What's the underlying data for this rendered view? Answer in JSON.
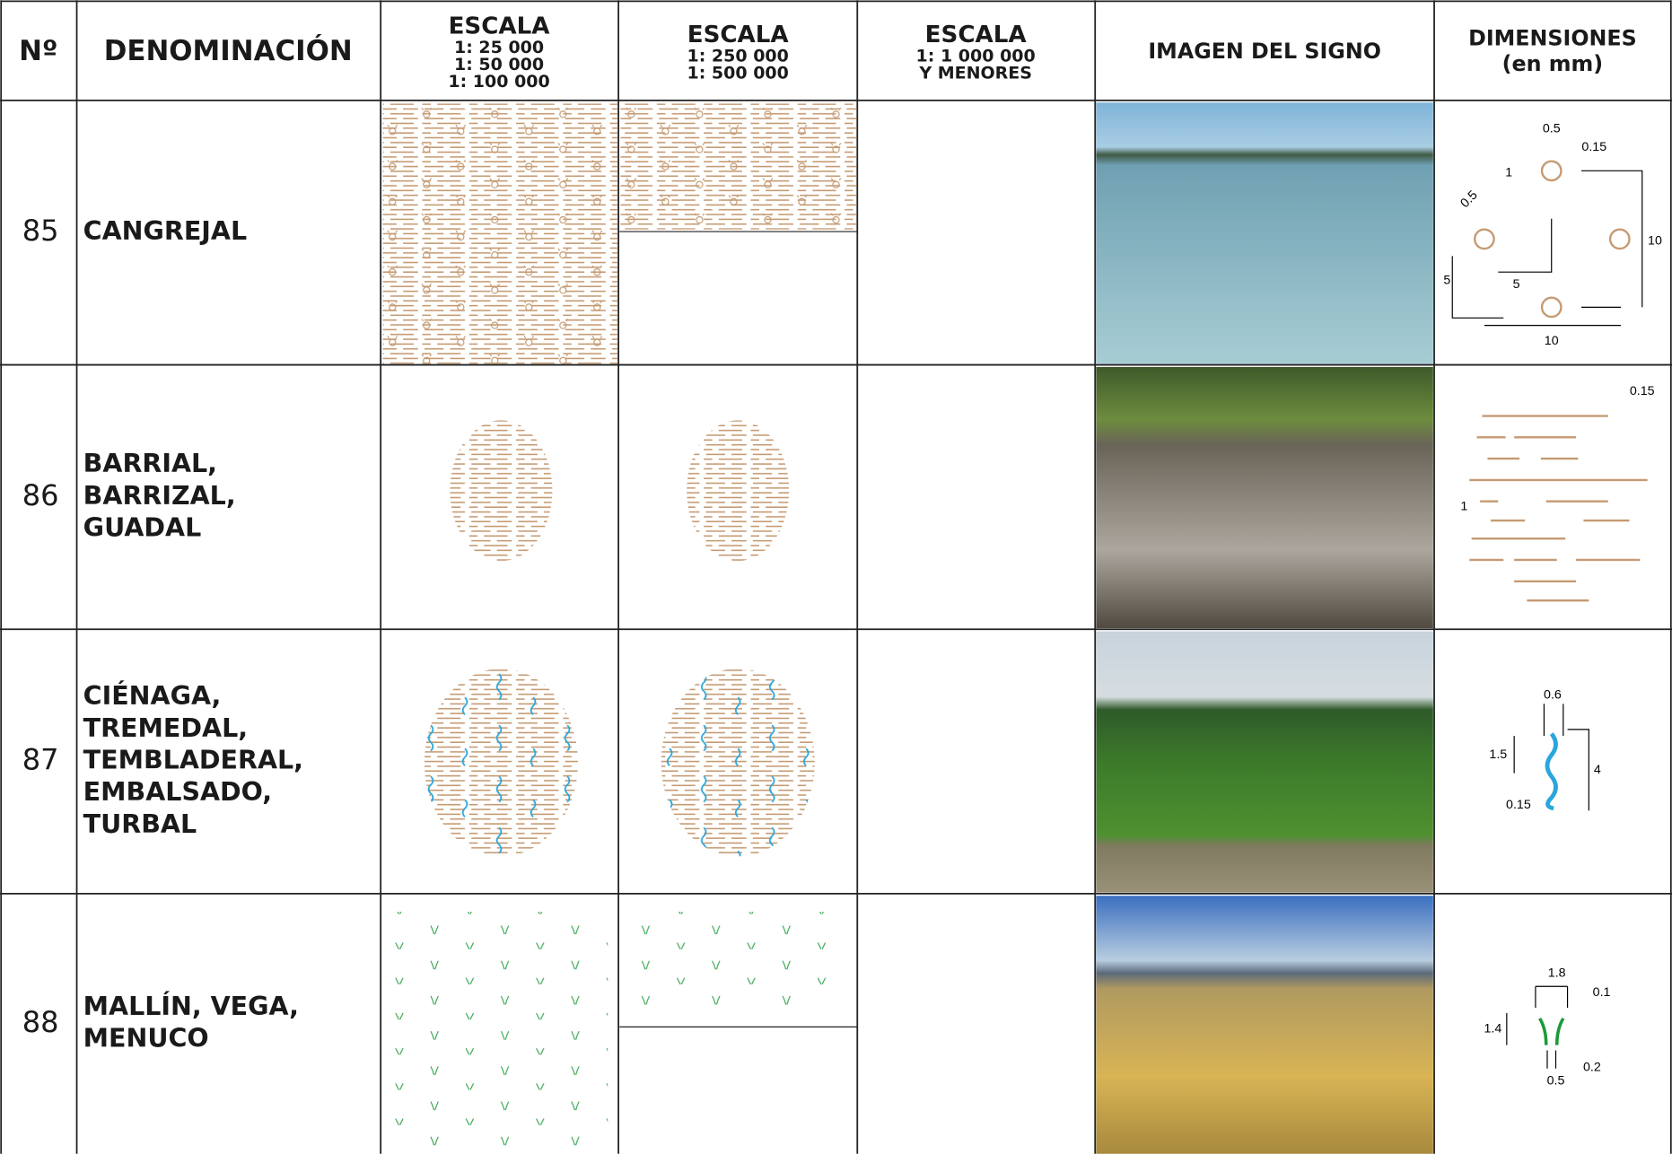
{
  "header": [
    {
      "lines": [
        "Nº"
      ]
    },
    {
      "lines": [
        "DENOMINACIÓN"
      ]
    },
    {
      "lines": [
        "ESCALA",
        "1: 25 000",
        "1: 50 000",
        "1: 100 000"
      ]
    },
    {
      "lines": [
        "ESCALA",
        "1: 250 000",
        "1: 500 000"
      ]
    },
    {
      "lines": [
        "ESCALA",
        "1: 1 000 000",
        "Y MENORES"
      ]
    },
    {
      "lines": [
        "IMAGEN DEL SIGNO"
      ]
    },
    {
      "lines": [
        "DIMENSIONES",
        "(en mm)"
      ]
    }
  ],
  "rows": [
    {
      "number": "85",
      "name_lines": [
        "CANGREJAL"
      ],
      "dimensions": [
        "0.5",
        "0.15",
        "1",
        "0.5",
        "10",
        "5",
        "5",
        "10"
      ]
    },
    {
      "number": "86",
      "name_lines": [
        "BARRIAL,",
        "BARRIZAL,",
        "GUADAL"
      ],
      "dimensions": [
        "0.15",
        "1"
      ]
    },
    {
      "number": "87",
      "name_lines": [
        "CIÉNAGA,",
        "TREMEDAL,",
        "TEMBLADERAL,",
        "EMBALSADO,",
        "TURBAL"
      ],
      "dimensions": [
        "0.6",
        "1.5",
        "4",
        "0.15"
      ]
    },
    {
      "number": "88",
      "name_lines": [
        "MALLÍN, VEGA,",
        "MENUCO"
      ],
      "dimensions": [
        "1.8",
        "0.1",
        "1.4",
        "0.2",
        "0.5"
      ]
    }
  ]
}
